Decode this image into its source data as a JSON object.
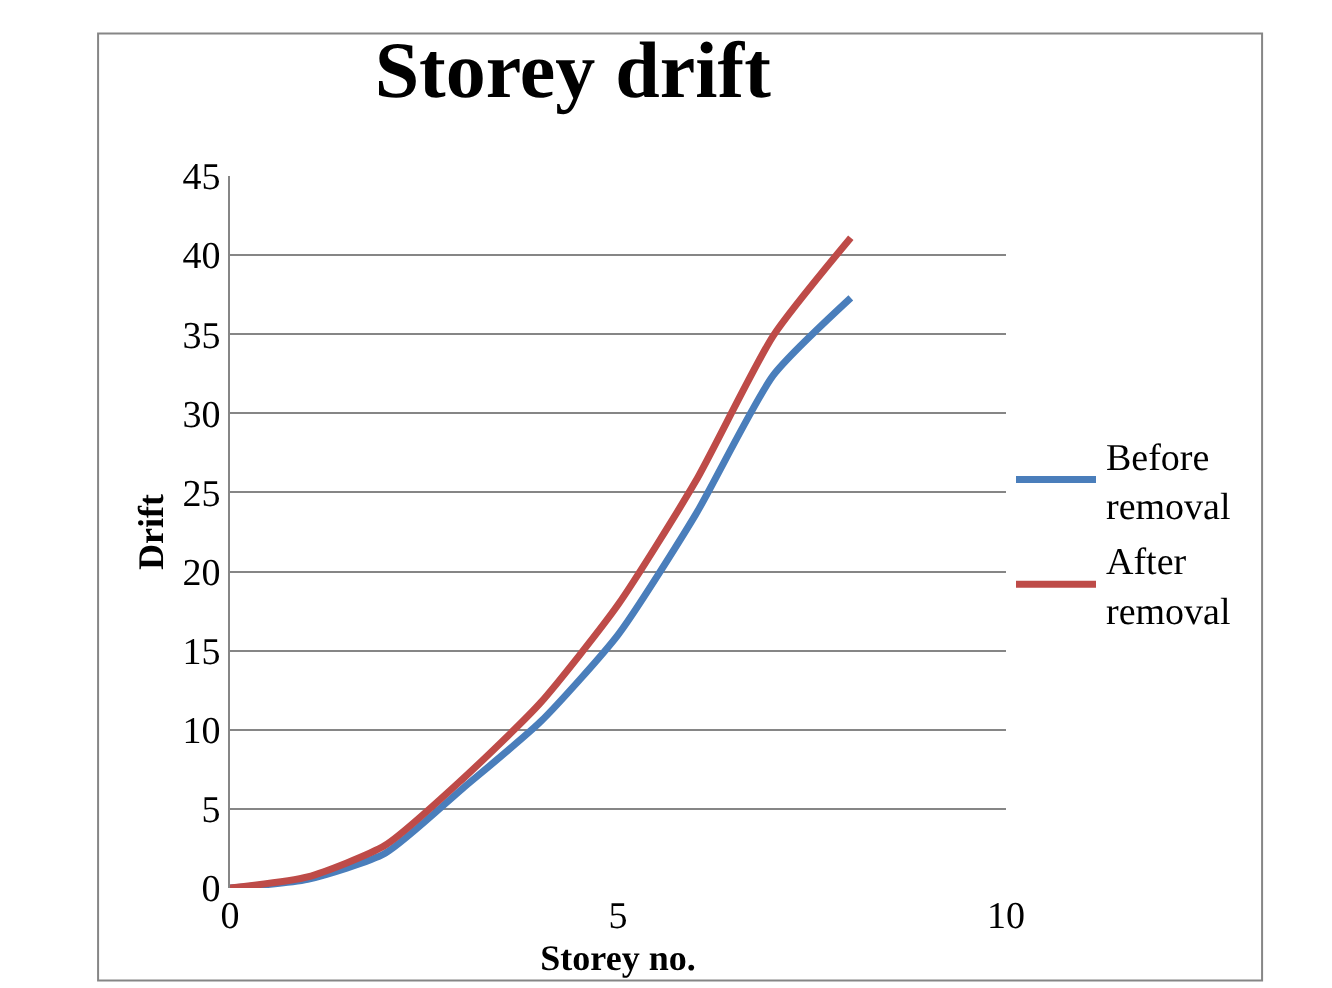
{
  "chart_data": {
    "type": "line",
    "title": "Storey drift",
    "xlabel": "Storey no.",
    "ylabel": "Drift",
    "x": [
      0,
      1,
      2,
      3,
      4,
      5,
      6,
      7,
      8
    ],
    "series": [
      {
        "name": "Before removal",
        "color": "#4a7ebb",
        "values": [
          0,
          0.55,
          2.2,
          6.3,
          10.5,
          16.0,
          23.6,
          32.4,
          37.3
        ]
      },
      {
        "name": "After removal",
        "color": "#be4b48",
        "values": [
          0,
          0.7,
          2.7,
          6.9,
          11.7,
          17.9,
          25.7,
          34.9,
          41.1
        ]
      }
    ],
    "xlim": [
      0,
      10
    ],
    "xticks": [
      0,
      5,
      10
    ],
    "ylim": [
      0,
      45
    ],
    "yticks": [
      0,
      5,
      10,
      15,
      20,
      25,
      30,
      35,
      40,
      45
    ],
    "grid": "y",
    "legend": "right",
    "marker": "none",
    "line_style": "solid"
  }
}
